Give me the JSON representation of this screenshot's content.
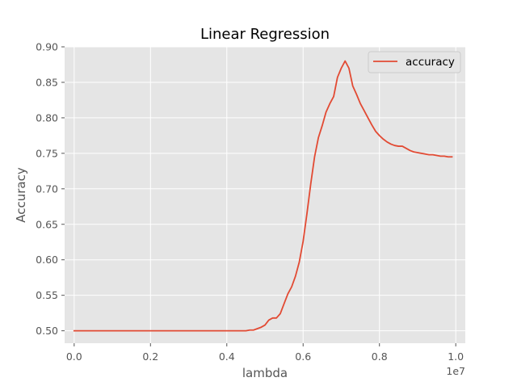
{
  "chart_data": {
    "type": "line",
    "title": "Linear Regression",
    "xlabel": "lambda",
    "ylabel": "Accuracy",
    "x_offset_label": "1e7",
    "x_scale": 10000000,
    "xlim": [
      -250000,
      10250000
    ],
    "ylim": [
      0.4825,
      0.9
    ],
    "grid": true,
    "legend": {
      "position": "top-right",
      "entries": [
        "accuracy"
      ]
    },
    "colors": {
      "series": "#E24A33",
      "plot_background": "#E5E5E5",
      "grid": "#FFFFFF"
    },
    "x_ticks": [
      {
        "value": 0,
        "label": "0.0"
      },
      {
        "value": 2000000,
        "label": "0.2"
      },
      {
        "value": 4000000,
        "label": "0.4"
      },
      {
        "value": 6000000,
        "label": "0.6"
      },
      {
        "value": 8000000,
        "label": "0.8"
      },
      {
        "value": 10000000,
        "label": "1.0"
      }
    ],
    "y_ticks": [
      {
        "value": 0.5,
        "label": "0.50"
      },
      {
        "value": 0.55,
        "label": "0.55"
      },
      {
        "value": 0.6,
        "label": "0.60"
      },
      {
        "value": 0.65,
        "label": "0.65"
      },
      {
        "value": 0.7,
        "label": "0.70"
      },
      {
        "value": 0.75,
        "label": "0.75"
      },
      {
        "value": 0.8,
        "label": "0.80"
      },
      {
        "value": 0.85,
        "label": "0.85"
      },
      {
        "value": 0.9,
        "label": "0.90"
      }
    ],
    "series": [
      {
        "name": "accuracy",
        "x": [
          0,
          500000,
          1000000,
          1500000,
          2000000,
          2500000,
          3000000,
          3500000,
          4000000,
          4400000,
          4500000,
          4600000,
          4700000,
          4800000,
          4900000,
          5000000,
          5100000,
          5200000,
          5300000,
          5400000,
          5500000,
          5600000,
          5700000,
          5800000,
          5900000,
          6000000,
          6100000,
          6200000,
          6300000,
          6400000,
          6500000,
          6600000,
          6700000,
          6800000,
          6900000,
          7000000,
          7100000,
          7200000,
          7300000,
          7400000,
          7500000,
          7600000,
          7700000,
          7800000,
          7900000,
          8000000,
          8100000,
          8200000,
          8300000,
          8400000,
          8500000,
          8600000,
          8700000,
          8800000,
          8900000,
          9000000,
          9100000,
          9200000,
          9300000,
          9400000,
          9500000,
          9600000,
          9700000,
          9800000,
          9900000
        ],
        "y": [
          0.5,
          0.5,
          0.5,
          0.5,
          0.5,
          0.5,
          0.5,
          0.5,
          0.5,
          0.5,
          0.5,
          0.501,
          0.501,
          0.503,
          0.505,
          0.508,
          0.515,
          0.518,
          0.518,
          0.524,
          0.538,
          0.552,
          0.562,
          0.577,
          0.597,
          0.626,
          0.665,
          0.707,
          0.745,
          0.772,
          0.789,
          0.808,
          0.82,
          0.83,
          0.857,
          0.87,
          0.88,
          0.87,
          0.845,
          0.833,
          0.82,
          0.81,
          0.8,
          0.79,
          0.781,
          0.775,
          0.77,
          0.766,
          0.763,
          0.761,
          0.76,
          0.76,
          0.757,
          0.754,
          0.752,
          0.751,
          0.75,
          0.749,
          0.748,
          0.748,
          0.747,
          0.746,
          0.746,
          0.745,
          0.745
        ]
      }
    ]
  }
}
